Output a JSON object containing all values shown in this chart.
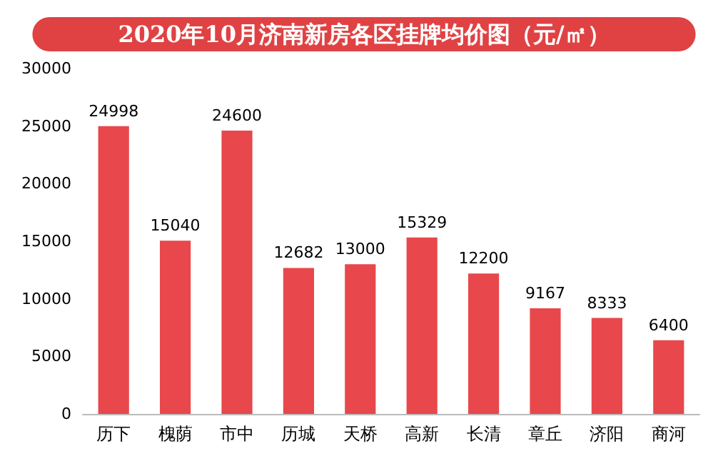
{
  "chart_data": {
    "type": "bar",
    "title": "2020年10月济南新房各区挂牌均价图（元/㎡）",
    "categories": [
      "历下",
      "槐荫",
      "市中",
      "历城",
      "天桥",
      "高新",
      "长清",
      "章丘",
      "济阳",
      "商河"
    ],
    "values": [
      24998,
      15040,
      24600,
      12682,
      13000,
      15329,
      12200,
      9167,
      8333,
      6400
    ],
    "color": "#e8484b",
    "ylim": [
      0,
      30000
    ],
    "yticks": [
      0,
      5000,
      10000,
      15000,
      20000,
      25000,
      30000
    ],
    "grid": false,
    "data_labels": true
  }
}
